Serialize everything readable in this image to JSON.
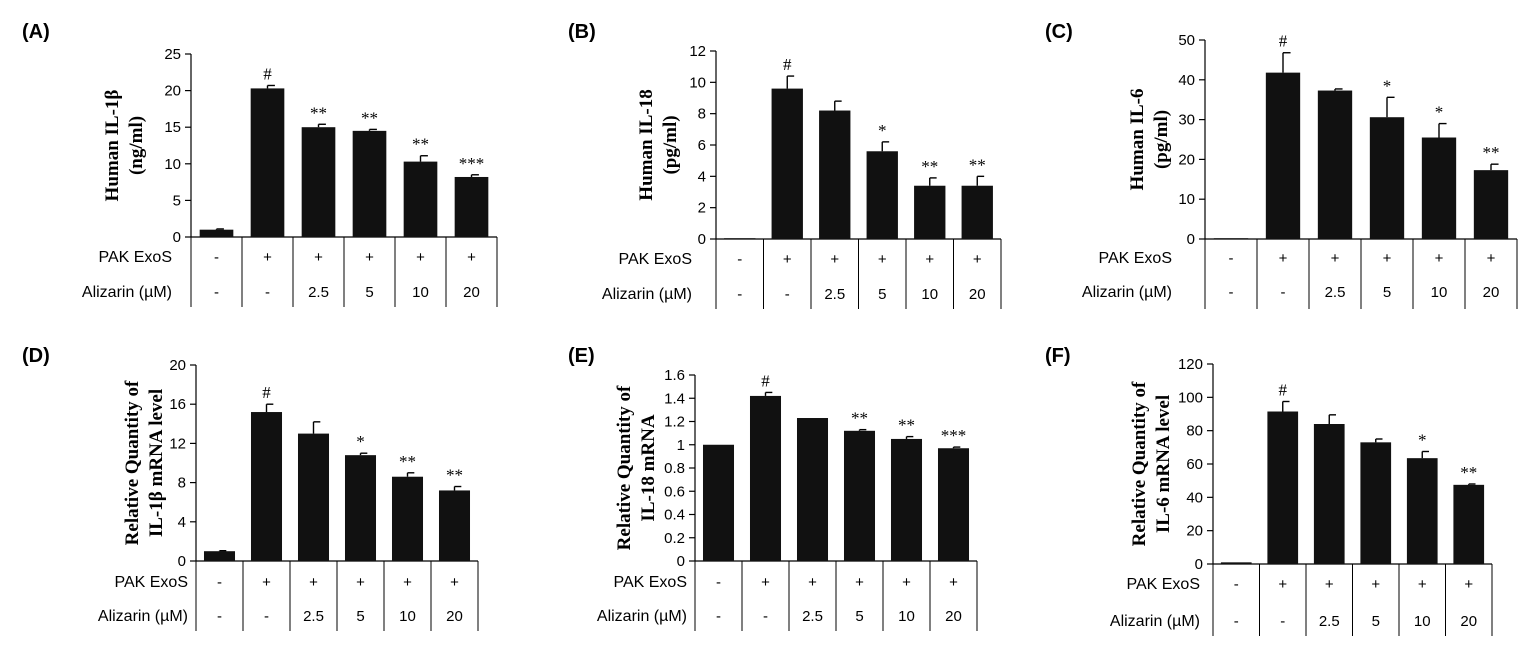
{
  "row_labels": {
    "exos": "PAK ExoS",
    "alizarin": "Alizarin (µM)"
  },
  "chart_data": [
    {
      "panel": "(A)",
      "type": "bar",
      "ylabel": [
        "Human IL-1β",
        "(ng/ml)"
      ],
      "ylim": [
        0,
        25
      ],
      "yticks": [
        "0",
        "5",
        "10",
        "15",
        "20",
        "25"
      ],
      "values": [
        1.0,
        20.3,
        15.0,
        14.5,
        10.3,
        8.2
      ],
      "errors": [
        0.1,
        0.4,
        0.4,
        0.2,
        0.8,
        0.3
      ],
      "significance": [
        "",
        "#",
        "**",
        "**",
        "**",
        "***"
      ],
      "exos": [
        "-",
        "+",
        "+",
        "+",
        "+",
        "+"
      ],
      "alizarin": [
        "-",
        "-",
        "2.5",
        "5",
        "10",
        "20"
      ]
    },
    {
      "panel": "(B)",
      "type": "bar",
      "ylabel": [
        "Human IL-18",
        "(pg/ml)"
      ],
      "ylim": [
        0,
        12
      ],
      "yticks": [
        "0",
        "2",
        "4",
        "6",
        "8",
        "10",
        "12"
      ],
      "values": [
        0.0,
        9.6,
        8.2,
        5.6,
        3.4,
        3.4
      ],
      "errors": [
        0.0,
        0.8,
        0.6,
        0.6,
        0.5,
        0.6
      ],
      "significance": [
        "",
        "#",
        "",
        "*",
        "**",
        "**"
      ],
      "exos": [
        "-",
        "+",
        "+",
        "+",
        "+",
        "+"
      ],
      "alizarin": [
        "-",
        "-",
        "2.5",
        "5",
        "10",
        "20"
      ]
    },
    {
      "panel": "(C)",
      "type": "bar",
      "ylabel": [
        "Human IL-6",
        "(pg/ml)"
      ],
      "ylim": [
        0,
        50
      ],
      "yticks": [
        "0",
        "10",
        "20",
        "30",
        "40",
        "50"
      ],
      "values": [
        0.0,
        41.8,
        37.3,
        30.6,
        25.5,
        17.3
      ],
      "errors": [
        0.0,
        5.0,
        0.4,
        5.0,
        3.5,
        1.5
      ],
      "significance": [
        "",
        "#",
        "",
        "*",
        "*",
        "**"
      ],
      "exos": [
        "-",
        "+",
        "+",
        "+",
        "+",
        "+"
      ],
      "alizarin": [
        "-",
        "-",
        "2.5",
        "5",
        "10",
        "20"
      ]
    },
    {
      "panel": "(D)",
      "type": "bar",
      "ylabel": [
        "Relative Quantity of",
        "IL-1β mRNA level"
      ],
      "ylim": [
        0,
        20
      ],
      "yticks": [
        "0",
        "4",
        "8",
        "12",
        "16",
        "20"
      ],
      "values": [
        1.0,
        15.2,
        13.0,
        10.8,
        8.6,
        7.2
      ],
      "errors": [
        0.05,
        0.8,
        1.2,
        0.2,
        0.4,
        0.4
      ],
      "significance": [
        "",
        "#",
        "",
        "*",
        "**",
        "**"
      ],
      "exos": [
        "-",
        "+",
        "+",
        "+",
        "+",
        "+"
      ],
      "alizarin": [
        "-",
        "-",
        "2.5",
        "5",
        "10",
        "20"
      ]
    },
    {
      "panel": "(E)",
      "type": "bar",
      "ylabel": [
        "Relative Quantity of",
        "IL-18 mRNA"
      ],
      "ylim": [
        0,
        1.6
      ],
      "yticks": [
        "0",
        "0.2",
        "0.4",
        "0.6",
        "0.8",
        "1",
        "1.2",
        "1.4",
        "1.6"
      ],
      "values": [
        1.0,
        1.42,
        1.23,
        1.12,
        1.05,
        0.97
      ],
      "errors": [
        0.0,
        0.03,
        0.0,
        0.01,
        0.02,
        0.01
      ],
      "significance": [
        "",
        "#",
        "",
        "**",
        "**",
        "***"
      ],
      "exos": [
        "-",
        "+",
        "+",
        "+",
        "+",
        "+"
      ],
      "alizarin": [
        "-",
        "-",
        "2.5",
        "5",
        "10",
        "20"
      ]
    },
    {
      "panel": "(F)",
      "type": "bar",
      "ylabel": [
        "Relative Quantity of",
        "IL-6 mRNA level"
      ],
      "ylim": [
        0,
        120
      ],
      "yticks": [
        "0",
        "20",
        "40",
        "60",
        "80",
        "100",
        "120"
      ],
      "values": [
        1.0,
        91.5,
        84.0,
        73.0,
        63.5,
        47.5
      ],
      "errors": [
        0.0,
        6.0,
        5.5,
        2.0,
        4.0,
        0.5
      ],
      "significance": [
        "",
        "#",
        "",
        "",
        "*",
        "**"
      ],
      "exos": [
        "-",
        "+",
        "+",
        "+",
        "+",
        "+"
      ],
      "alizarin": [
        "-",
        "-",
        "2.5",
        "5",
        "10",
        "20"
      ]
    }
  ]
}
